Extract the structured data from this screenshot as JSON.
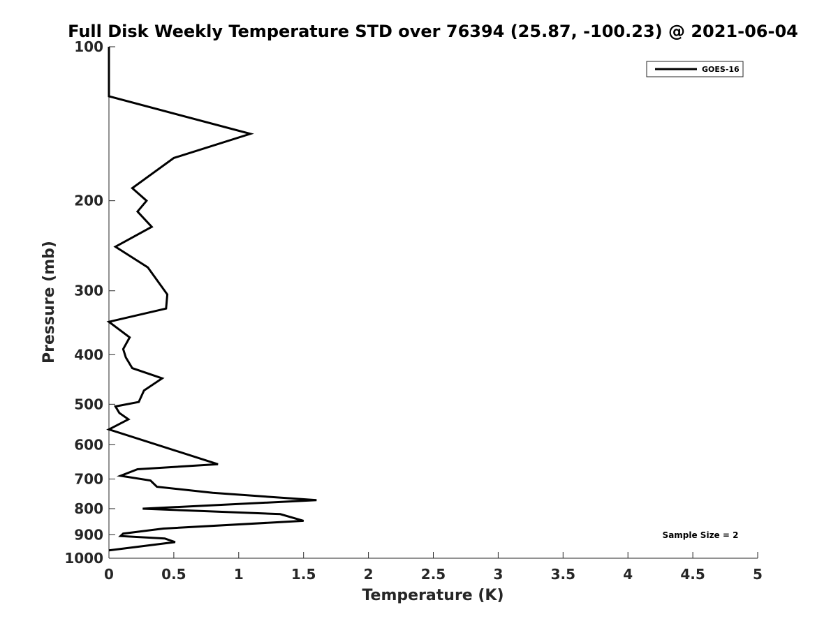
{
  "chart_data": {
    "type": "line",
    "title": "Full Disk Weekly Temperature STD over 76394 (25.87, -100.23) @ 2021-06-04",
    "xlabel": "Temperature (K)",
    "ylabel": "Pressure (mb)",
    "xlim": [
      0,
      5
    ],
    "ylim": [
      100,
      1000
    ],
    "y_scale": "log",
    "y_reversed": true,
    "x_ticks": [
      "0",
      "0.5",
      "1",
      "1.5",
      "2",
      "2.5",
      "3",
      "3.5",
      "4",
      "4.5",
      "5"
    ],
    "y_ticks": [
      "100",
      "200",
      "300",
      "400",
      "500",
      "600",
      "700",
      "800",
      "900",
      "1000"
    ],
    "grid": false,
    "legend_position": "top-right",
    "annotation": "Sample Size = 2",
    "series": [
      {
        "name": "GOES-16",
        "color": "#000000",
        "x": [
          0,
          0,
          1.09,
          0.5,
          0.18,
          0.29,
          0.22,
          0.33,
          0.05,
          0.3,
          0.45,
          0.44,
          0.0,
          0.16,
          0.11,
          0.13,
          0.18,
          0.41,
          0.27,
          0.23,
          0.05,
          0.08,
          0.15,
          0.0,
          0.84,
          0.22,
          0.09,
          0.32,
          0.37,
          0.8,
          1.6,
          0.26,
          1.32,
          1.5,
          0.42,
          0.11,
          0.09,
          0.43,
          0.51,
          0.0
        ],
        "y": [
          100,
          125,
          148,
          165,
          189,
          200,
          210,
          225,
          246,
          270,
          305,
          325,
          345,
          370,
          390,
          405,
          425,
          445,
          470,
          495,
          505,
          520,
          535,
          560,
          655,
          670,
          690,
          705,
          725,
          745,
          770,
          800,
          820,
          845,
          875,
          895,
          905,
          915,
          930,
          965
        ]
      }
    ]
  }
}
